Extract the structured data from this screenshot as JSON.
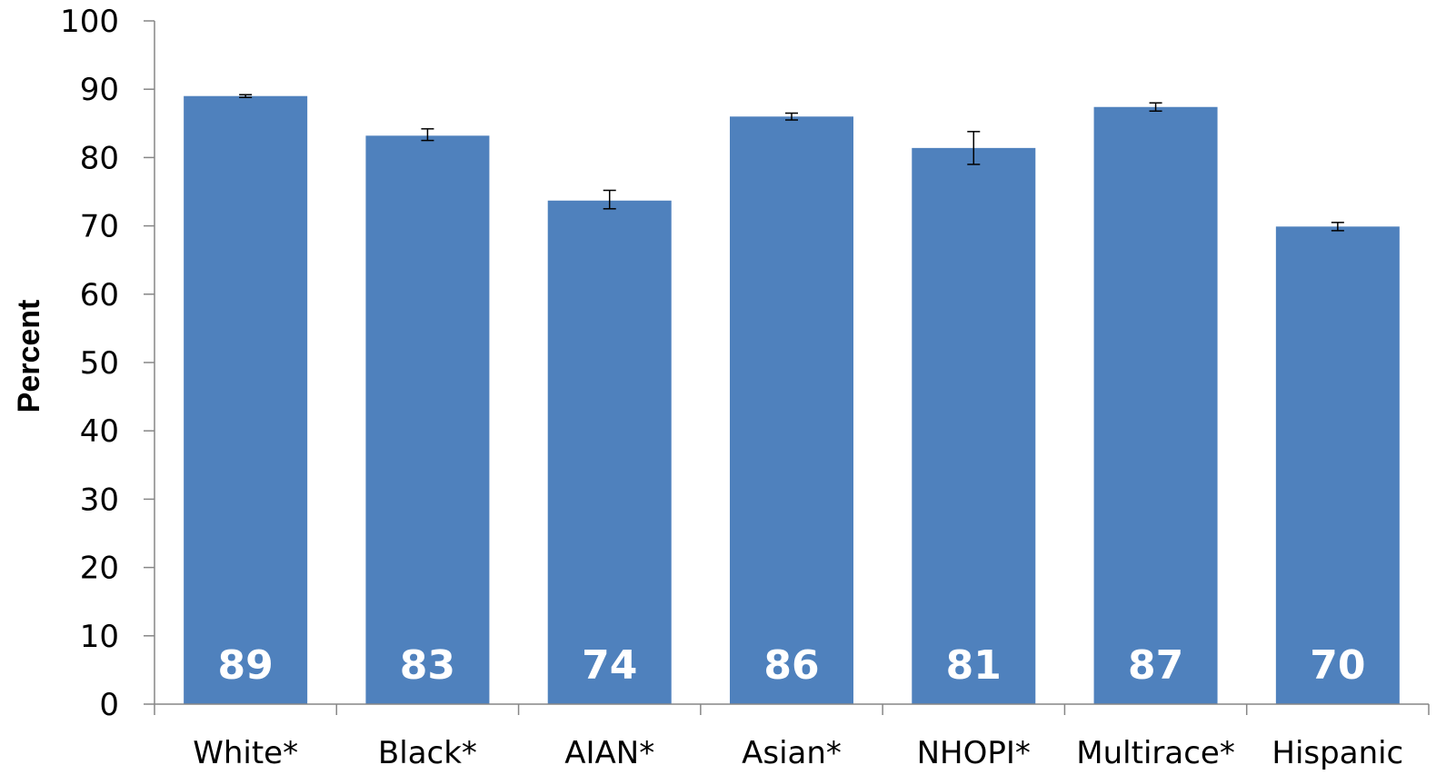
{
  "chart_data": {
    "type": "bar",
    "ylabel": "Percent",
    "xlabel": "",
    "ylim": [
      0,
      100
    ],
    "yticks": [
      0,
      10,
      20,
      30,
      40,
      50,
      60,
      70,
      80,
      90,
      100
    ],
    "ytick_labels": [
      "0",
      "10",
      "20",
      "30",
      "40",
      "50",
      "60",
      "70",
      "80",
      "90",
      "100"
    ],
    "grid": false,
    "categories": [
      "White*",
      "Black*",
      "AIAN*",
      "Asian*",
      "NHOPI*",
      "Multirace*",
      "Hispanic"
    ],
    "values": [
      89.0,
      83.2,
      73.7,
      86.0,
      81.4,
      87.4,
      69.9
    ],
    "data_labels": [
      "89",
      "83",
      "74",
      "86",
      "81",
      "87",
      "70"
    ],
    "error_bars": [
      {
        "low": 88.8,
        "high": 89.2
      },
      {
        "low": 82.5,
        "high": 84.2
      },
      {
        "low": 72.5,
        "high": 75.2
      },
      {
        "low": 85.5,
        "high": 86.5
      },
      {
        "low": 79.0,
        "high": 83.8
      },
      {
        "low": 86.8,
        "high": 88.0
      },
      {
        "low": 69.3,
        "high": 70.5
      }
    ],
    "colors": {
      "bar": "#4F81BD",
      "axis": "#868686",
      "error_bar": "#000000",
      "data_label": "#FFFFFF"
    }
  }
}
